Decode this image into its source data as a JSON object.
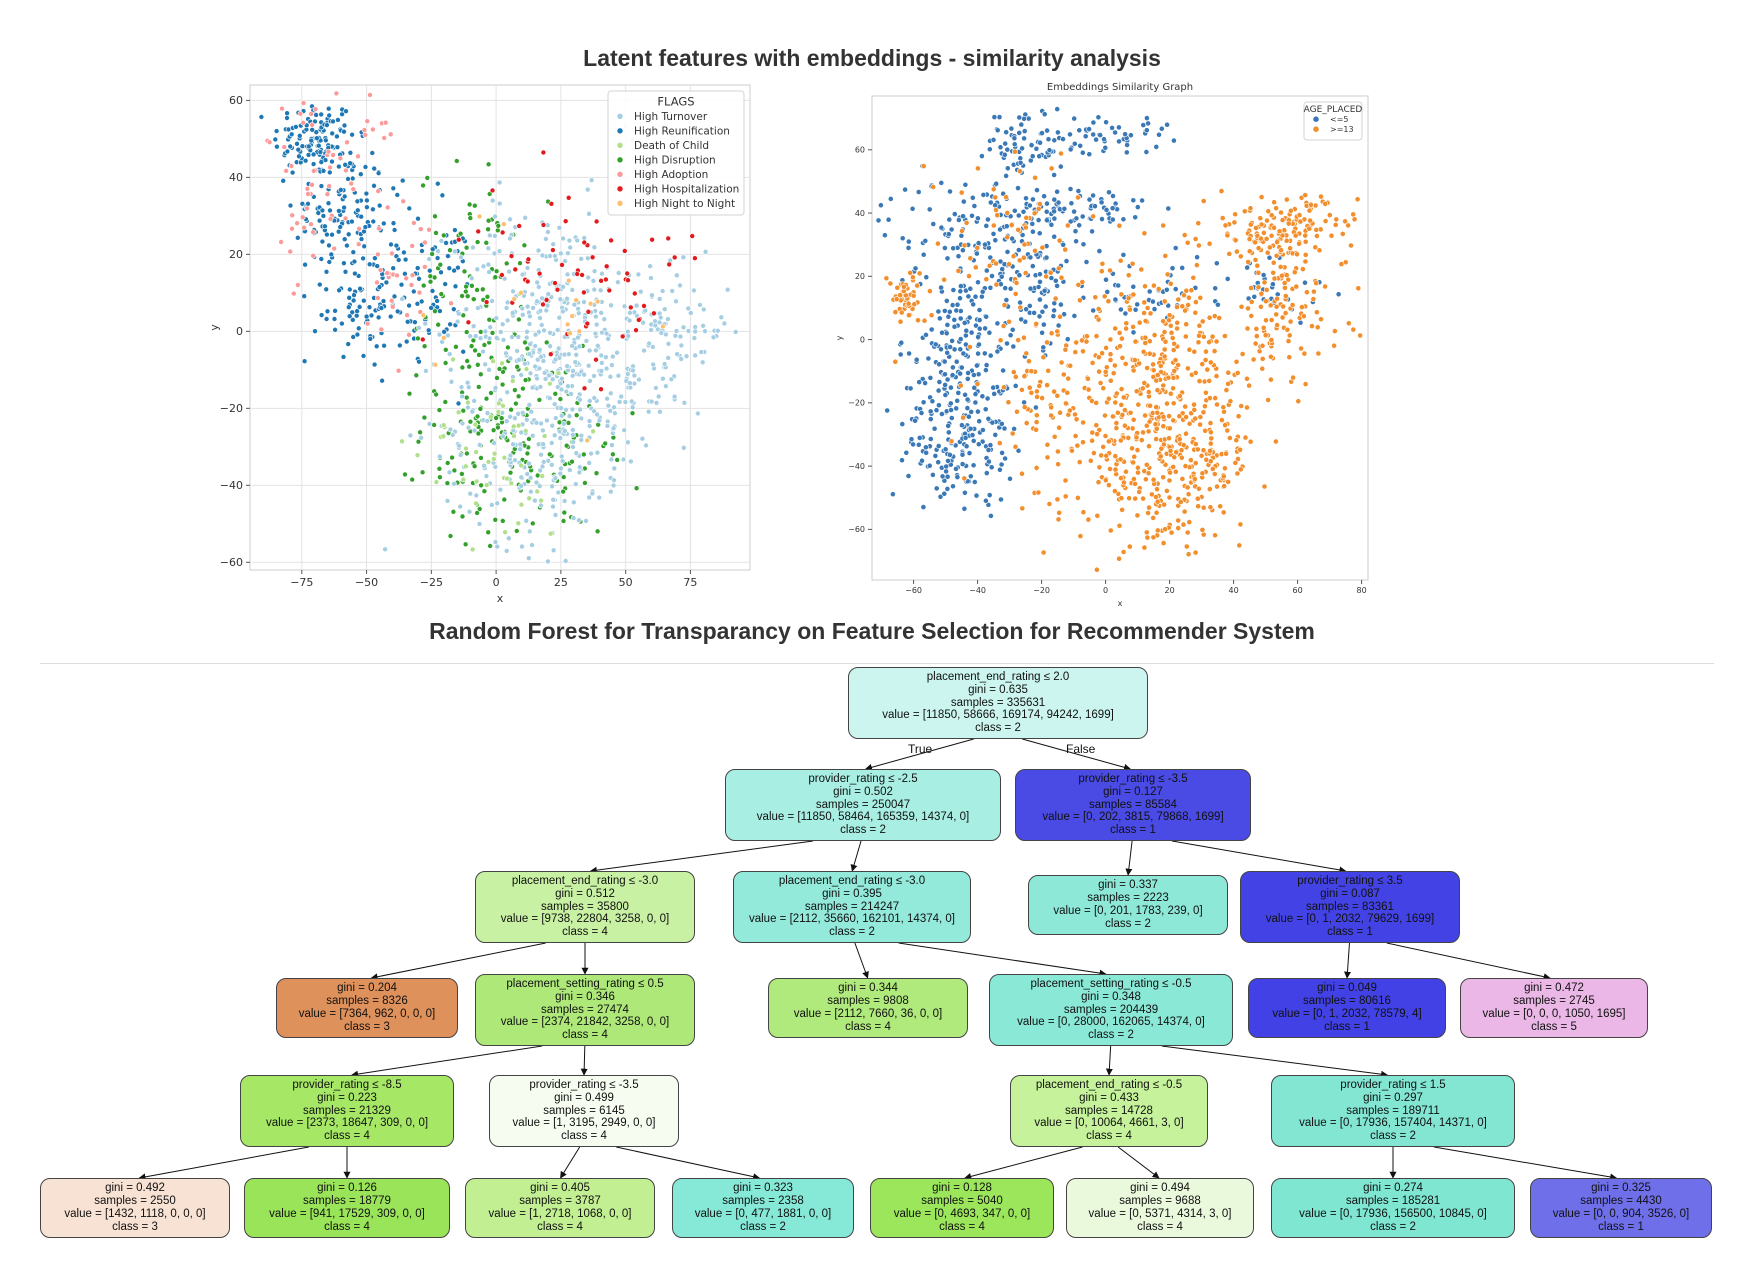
{
  "titles": {
    "top": "Latent features with embeddings - similarity analysis",
    "bottom": "Random Forest for Transparancy on Feature Selection for Recommender System"
  },
  "chart_data": [
    {
      "type": "scatter",
      "title": "",
      "xlabel": "x",
      "ylabel": "y",
      "xlim": [
        -95,
        98
      ],
      "ylim": [
        -62,
        64
      ],
      "xticks": [
        -75,
        -50,
        -25,
        0,
        25,
        50,
        75
      ],
      "yticks": [
        60,
        40,
        20,
        0,
        -20,
        -40,
        -60
      ],
      "xtick_labels": [
        "−75",
        "−50",
        "−25",
        "0",
        "25",
        "50",
        "75"
      ],
      "ytick_labels": [
        "60",
        "40",
        "20",
        "0",
        "−20",
        "−40",
        "−60"
      ],
      "grid": true,
      "legend": {
        "title": "FLAGS",
        "placement": "top-right",
        "entries": [
          "High Turnover",
          "High Reunification",
          "Death of Child",
          "High Disruption",
          "High Adoption",
          "High Hospitalization",
          "High Night to Night"
        ]
      },
      "colors": [
        "#a6cee3",
        "#1f78b4",
        "#b2df8a",
        "#33a02c",
        "#fb9a99",
        "#e31a1c",
        "#fdbf6f"
      ],
      "clusters": [
        {
          "series": 1,
          "cx": -70,
          "cy": 50,
          "sx": 8,
          "sy": 5,
          "n": 120
        },
        {
          "series": 1,
          "cx": -60,
          "cy": 30,
          "sx": 9,
          "sy": 9,
          "n": 110
        },
        {
          "series": 1,
          "cx": -55,
          "cy": 5,
          "sx": 6,
          "sy": 6,
          "n": 50
        },
        {
          "series": 1,
          "cx": -38,
          "cy": 15,
          "sx": 8,
          "sy": 12,
          "n": 80
        },
        {
          "series": 1,
          "cx": -20,
          "cy": 10,
          "sx": 6,
          "sy": 10,
          "n": 40
        },
        {
          "series": 4,
          "cx": -65,
          "cy": 40,
          "sx": 14,
          "sy": 12,
          "n": 70
        },
        {
          "series": 4,
          "cx": -35,
          "cy": 10,
          "sx": 10,
          "sy": 12,
          "n": 30
        },
        {
          "series": 3,
          "cx": -10,
          "cy": 15,
          "sx": 10,
          "sy": 14,
          "n": 80
        },
        {
          "series": 3,
          "cx": -5,
          "cy": -25,
          "sx": 12,
          "sy": 14,
          "n": 110
        },
        {
          "series": 3,
          "cx": 20,
          "cy": -30,
          "sx": 18,
          "sy": 12,
          "n": 80
        },
        {
          "series": 0,
          "cx": 20,
          "cy": 5,
          "sx": 18,
          "sy": 14,
          "n": 260
        },
        {
          "series": 0,
          "cx": 15,
          "cy": -25,
          "sx": 18,
          "sy": 15,
          "n": 240
        },
        {
          "series": 0,
          "cx": 70,
          "cy": 0,
          "sx": 10,
          "sy": 8,
          "n": 80
        },
        {
          "series": 0,
          "cx": 45,
          "cy": -15,
          "sx": 12,
          "sy": 12,
          "n": 90
        },
        {
          "series": 2,
          "cx": 0,
          "cy": -30,
          "sx": 15,
          "sy": 15,
          "n": 55
        },
        {
          "series": 5,
          "cx": 25,
          "cy": 20,
          "sx": 18,
          "sy": 12,
          "n": 45
        },
        {
          "series": 5,
          "cx": 50,
          "cy": 5,
          "sx": 15,
          "sy": 15,
          "n": 25
        },
        {
          "series": 6,
          "cx": 15,
          "cy": 0,
          "sx": 25,
          "sy": 20,
          "n": 18
        }
      ]
    },
    {
      "type": "scatter",
      "title": "Embeddings Similarity Graph",
      "xlabel": "x",
      "ylabel": "y",
      "xlim": [
        -73,
        82
      ],
      "ylim": [
        -76,
        77
      ],
      "xticks": [
        -60,
        -40,
        -20,
        0,
        20,
        40,
        60,
        80
      ],
      "yticks": [
        60,
        40,
        20,
        0,
        -20,
        -40,
        -60
      ],
      "xtick_labels": [
        "−60",
        "−40",
        "−20",
        "0",
        "20",
        "40",
        "60",
        "80"
      ],
      "ytick_labels": [
        "60",
        "40",
        "20",
        "0",
        "−20",
        "−40",
        "−60"
      ],
      "grid": false,
      "legend": {
        "title": "AGE_PLACED",
        "placement": "top-right",
        "entries": [
          "<=5",
          ">=13"
        ]
      },
      "colors": [
        "#3a78b6",
        "#f28e2b"
      ],
      "clusters": [
        {
          "series": 0,
          "cx": -25,
          "cy": 62,
          "sx": 6,
          "sy": 6,
          "n": 70
        },
        {
          "series": 0,
          "cx": 0,
          "cy": 65,
          "sx": 10,
          "sy": 3,
          "n": 50
        },
        {
          "series": 0,
          "cx": -40,
          "cy": 35,
          "sx": 15,
          "sy": 8,
          "n": 120
        },
        {
          "series": 0,
          "cx": -10,
          "cy": 40,
          "sx": 12,
          "sy": 5,
          "n": 80
        },
        {
          "series": 0,
          "cx": -45,
          "cy": -10,
          "sx": 10,
          "sy": 15,
          "n": 220
        },
        {
          "series": 0,
          "cx": -45,
          "cy": -35,
          "sx": 8,
          "sy": 8,
          "n": 100
        },
        {
          "series": 0,
          "cx": -25,
          "cy": 15,
          "sx": 12,
          "sy": 8,
          "n": 90
        },
        {
          "series": 0,
          "cx": 15,
          "cy": 15,
          "sx": 10,
          "sy": 5,
          "n": 40
        },
        {
          "series": 0,
          "cx": 50,
          "cy": 15,
          "sx": 10,
          "sy": 6,
          "n": 30
        },
        {
          "series": 1,
          "cx": -62,
          "cy": 13,
          "sx": 3,
          "sy": 4,
          "n": 50
        },
        {
          "series": 1,
          "cx": 55,
          "cy": 35,
          "sx": 12,
          "sy": 5,
          "n": 150
        },
        {
          "series": 1,
          "cx": 55,
          "cy": 10,
          "sx": 10,
          "sy": 12,
          "n": 120
        },
        {
          "series": 1,
          "cx": 20,
          "cy": -35,
          "sx": 14,
          "sy": 15,
          "n": 420
        },
        {
          "series": 1,
          "cx": 15,
          "cy": 0,
          "sx": 12,
          "sy": 12,
          "n": 160
        },
        {
          "series": 1,
          "cx": -15,
          "cy": -20,
          "sx": 12,
          "sy": 15,
          "n": 110
        },
        {
          "series": 1,
          "cx": -30,
          "cy": 30,
          "sx": 15,
          "sy": 15,
          "n": 80
        }
      ]
    },
    {
      "type": "tree",
      "nodes": [
        {
          "id": "n0",
          "color": "#cbf5ee",
          "lines": [
            "placement_end_rating ≤ 2.0",
            "gini = 0.635",
            "samples = 335631",
            "value = [11850, 58666, 169174, 94242, 1699]",
            "class = 2"
          ]
        },
        {
          "id": "n1",
          "color": "#a8eee2",
          "lines": [
            "provider_rating ≤ -2.5",
            "gini = 0.502",
            "samples = 250047",
            "value = [11850, 58464, 165359, 14374, 0]",
            "class = 2"
          ]
        },
        {
          "id": "n2",
          "color": "#4a4ae5",
          "lines": [
            "provider_rating ≤ -3.5",
            "gini = 0.127",
            "samples = 85584",
            "value = [0, 202, 3815, 79868, 1699]",
            "class = 1"
          ]
        },
        {
          "id": "n3",
          "color": "#c9f1a4",
          "lines": [
            "placement_end_rating ≤ -3.0",
            "gini = 0.512",
            "samples = 35800",
            "value = [9738, 22804, 3258, 0, 0]",
            "class = 4"
          ]
        },
        {
          "id": "n4",
          "color": "#93e9da",
          "lines": [
            "placement_end_rating ≤ -3.0",
            "gini = 0.395",
            "samples = 214247",
            "value = [2112, 35660, 162101, 14374, 0]",
            "class = 2"
          ]
        },
        {
          "id": "n5",
          "color": "#8de8d8",
          "lines": [
            "gini = 0.337",
            "samples = 2223",
            "value = [0, 201, 1783, 239, 0]",
            "class = 2"
          ]
        },
        {
          "id": "n6",
          "color": "#4343e5",
          "lines": [
            "provider_rating ≤ 3.5",
            "gini = 0.087",
            "samples = 83361",
            "value = [0, 1, 2032, 79629, 1699]",
            "class = 1"
          ]
        },
        {
          "id": "n7",
          "color": "#df915b",
          "lines": [
            "gini = 0.204",
            "samples = 8326",
            "value = [7364, 962, 0, 0, 0]",
            "class = 3"
          ]
        },
        {
          "id": "n8",
          "color": "#ade878",
          "lines": [
            "placement_setting_rating ≤ 0.5",
            "gini = 0.346",
            "samples = 27474",
            "value = [2374, 21842, 3258, 0, 0]",
            "class = 4"
          ]
        },
        {
          "id": "n9",
          "color": "#b0ea7c",
          "lines": [
            "gini = 0.344",
            "samples = 9808",
            "value = [2112, 7660, 36, 0, 0]",
            "class = 4"
          ]
        },
        {
          "id": "n10",
          "color": "#8ae8d6",
          "lines": [
            "placement_setting_rating ≤ -0.5",
            "gini = 0.348",
            "samples = 204439",
            "value = [0, 28000, 162065, 14374, 0]",
            "class = 2"
          ]
        },
        {
          "id": "n11",
          "color": "#4141e5",
          "lines": [
            "gini = 0.049",
            "samples = 80616",
            "value = [0, 1, 2032, 78579, 4]",
            "class = 1"
          ]
        },
        {
          "id": "n12",
          "color": "#ebb7e6",
          "lines": [
            "gini = 0.472",
            "samples = 2745",
            "value = [0, 0, 0, 1050, 1695]",
            "class = 5"
          ]
        },
        {
          "id": "n13",
          "color": "#a6e866",
          "lines": [
            "provider_rating ≤ -8.5",
            "gini = 0.223",
            "samples = 21329",
            "value = [2373, 18647, 309, 0, 0]",
            "class = 4"
          ]
        },
        {
          "id": "n14",
          "color": "#f6fdf0",
          "lines": [
            "provider_rating ≤ -3.5",
            "gini = 0.499",
            "samples = 6145",
            "value = [1, 3195, 2949, 0, 0]",
            "class = 4"
          ]
        },
        {
          "id": "n15",
          "color": "#c5f29a",
          "lines": [
            "placement_end_rating ≤ -0.5",
            "gini = 0.433",
            "samples = 14728",
            "value = [0, 10064, 4661, 3, 0]",
            "class = 4"
          ]
        },
        {
          "id": "n16",
          "color": "#82e6d3",
          "lines": [
            "provider_rating ≤ 1.5",
            "gini = 0.297",
            "samples = 189711",
            "value = [0, 17936, 157404, 14371, 0]",
            "class = 2"
          ]
        },
        {
          "id": "n17",
          "color": "#f8e2d3",
          "lines": [
            "gini = 0.492",
            "samples = 2550",
            "value = [1432, 1118, 0, 0, 0]",
            "class = 3"
          ]
        },
        {
          "id": "n18",
          "color": "#9ae45a",
          "lines": [
            "gini = 0.126",
            "samples = 18779",
            "value = [941, 17529, 309, 0, 0]",
            "class = 4"
          ]
        },
        {
          "id": "n19",
          "color": "#c3ef93",
          "lines": [
            "gini = 0.405",
            "samples = 3787",
            "value = [1, 2718, 1068, 0, 0]",
            "class = 4"
          ]
        },
        {
          "id": "n20",
          "color": "#86e8d6",
          "lines": [
            "gini = 0.323",
            "samples = 2358",
            "value = [0, 477, 1881, 0, 0]",
            "class = 2"
          ]
        },
        {
          "id": "n21",
          "color": "#9be65a",
          "lines": [
            "gini = 0.128",
            "samples = 5040",
            "value = [0, 4693, 347, 0, 0]",
            "class = 4"
          ]
        },
        {
          "id": "n22",
          "color": "#eaf9dc",
          "lines": [
            "gini = 0.494",
            "samples = 9688",
            "value = [0, 5371, 4314, 3, 0]",
            "class = 4"
          ]
        },
        {
          "id": "n23",
          "color": "#7fe6d2",
          "lines": [
            "gini = 0.274",
            "samples = 185281",
            "value = [0, 17936, 156500, 10845, 0]",
            "class = 2"
          ]
        },
        {
          "id": "n24",
          "color": "#6f6fea",
          "lines": [
            "gini = 0.325",
            "samples = 4430",
            "value = [0, 0, 904, 3526, 0]",
            "class = 1"
          ]
        }
      ],
      "edges": [
        [
          "n0",
          "n1"
        ],
        [
          "n0",
          "n2"
        ],
        [
          "n1",
          "n3"
        ],
        [
          "n1",
          "n4"
        ],
        [
          "n2",
          "n5"
        ],
        [
          "n2",
          "n6"
        ],
        [
          "n3",
          "n7"
        ],
        [
          "n3",
          "n8"
        ],
        [
          "n4",
          "n9"
        ],
        [
          "n4",
          "n10"
        ],
        [
          "n6",
          "n11"
        ],
        [
          "n6",
          "n12"
        ],
        [
          "n8",
          "n13"
        ],
        [
          "n8",
          "n14"
        ],
        [
          "n10",
          "n15"
        ],
        [
          "n10",
          "n16"
        ],
        [
          "n13",
          "n17"
        ],
        [
          "n13",
          "n18"
        ],
        [
          "n14",
          "n19"
        ],
        [
          "n14",
          "n20"
        ],
        [
          "n15",
          "n21"
        ],
        [
          "n15",
          "n22"
        ],
        [
          "n16",
          "n23"
        ],
        [
          "n16",
          "n24"
        ]
      ],
      "edge_labels": {
        "true": "True",
        "false": "False"
      }
    }
  ]
}
